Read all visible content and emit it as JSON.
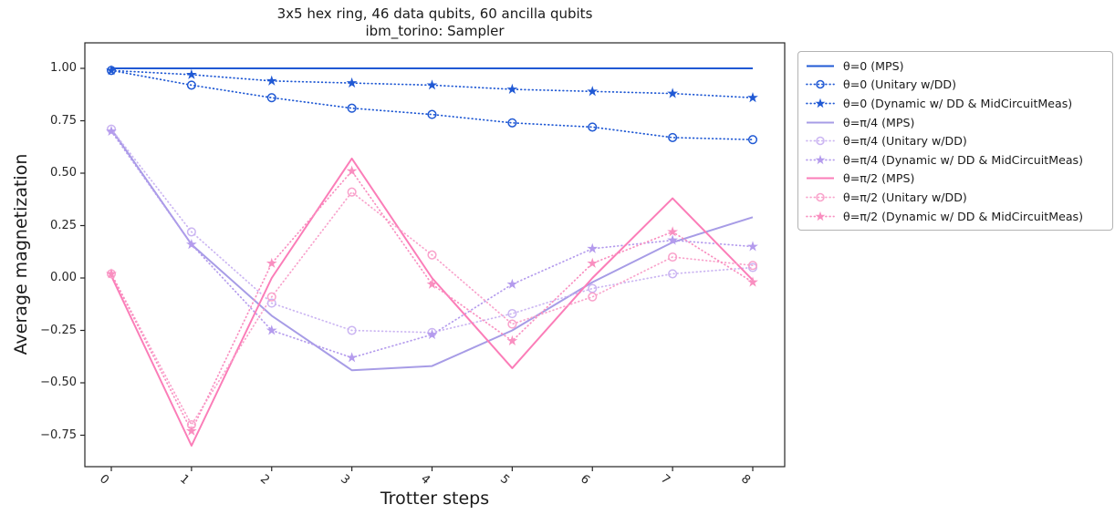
{
  "chart_data": {
    "type": "line",
    "title": "3x5 hex ring, 46 data qubits, 60 ancilla qubits",
    "subtitle": "ibm_torino: Sampler",
    "xlabel": "Trotter steps",
    "ylabel": "Average magnetization",
    "x": [
      0,
      1,
      2,
      3,
      4,
      5,
      6,
      7,
      8
    ],
    "xtick_labels": [
      "0",
      "1",
      "2",
      "3",
      "4",
      "5",
      "6",
      "7",
      "8"
    ],
    "yticks": [
      1.0,
      0.75,
      0.5,
      0.25,
      0.0,
      -0.25,
      -0.5,
      -0.75
    ],
    "ytick_labels": [
      "1.00",
      "0.75",
      "0.50",
      "0.25",
      "0.00",
      "−0.25",
      "−0.50",
      "−0.75"
    ],
    "xlim": [
      -0.35,
      8.4
    ],
    "ylim": [
      -0.9,
      1.12
    ],
    "grid": false,
    "legend_position": "upper right, outside plot",
    "series": [
      {
        "name": "θ=0 (MPS)",
        "style": "solid",
        "marker": "none",
        "color": "#2059d4",
        "values": [
          1.0,
          1.0,
          1.0,
          1.0,
          1.0,
          1.0,
          1.0,
          1.0,
          1.0
        ]
      },
      {
        "name": "θ=0 (Unitary w/DD)",
        "style": "dotted",
        "marker": "circle",
        "color": "#2059d4",
        "values": [
          0.99,
          0.92,
          0.86,
          0.81,
          0.78,
          0.74,
          0.72,
          0.67,
          0.66
        ]
      },
      {
        "name": "θ=0 (Dynamic w/ DD & MidCircuitMeas)",
        "style": "dotted",
        "marker": "star",
        "color": "#2059d4",
        "values": [
          0.99,
          0.97,
          0.94,
          0.93,
          0.92,
          0.9,
          0.89,
          0.88,
          0.86
        ]
      },
      {
        "name": "θ=π/4 (MPS)",
        "style": "solid",
        "marker": "none",
        "color": "#a79ce6",
        "values": [
          0.71,
          0.16,
          -0.18,
          -0.44,
          -0.42,
          -0.25,
          -0.02,
          0.17,
          0.29
        ]
      },
      {
        "name": "θ=π/4 (Unitary w/DD)",
        "style": "dotted",
        "marker": "circle",
        "color": "#cbb5f2",
        "values": [
          0.71,
          0.22,
          -0.12,
          -0.25,
          -0.26,
          -0.17,
          -0.05,
          0.02,
          0.05
        ]
      },
      {
        "name": "θ=π/4 (Dynamic w/ DD & MidCircuitMeas)",
        "style": "dotted",
        "marker": "star",
        "color": "#b49bed",
        "values": [
          0.7,
          0.16,
          -0.25,
          -0.38,
          -0.27,
          -0.03,
          0.14,
          0.18,
          0.15
        ]
      },
      {
        "name": "θ=π/2 (MPS)",
        "style": "solid",
        "marker": "none",
        "color": "#fb7db8",
        "values": [
          0.01,
          -0.8,
          0.0,
          0.57,
          0.0,
          -0.43,
          0.0,
          0.38,
          -0.01
        ]
      },
      {
        "name": "θ=π/2 (Unitary w/DD)",
        "style": "dotted",
        "marker": "circle",
        "color": "#f9a2cb",
        "values": [
          0.02,
          -0.7,
          -0.09,
          0.41,
          0.11,
          -0.22,
          -0.09,
          0.1,
          0.06
        ]
      },
      {
        "name": "θ=π/2 (Dynamic w/ DD & MidCircuitMeas)",
        "style": "dotted",
        "marker": "star",
        "color": "#f98fc0",
        "values": [
          0.02,
          -0.73,
          0.07,
          0.51,
          -0.03,
          -0.3,
          0.07,
          0.22,
          -0.02
        ]
      }
    ],
    "axis_color": "#262626"
  }
}
